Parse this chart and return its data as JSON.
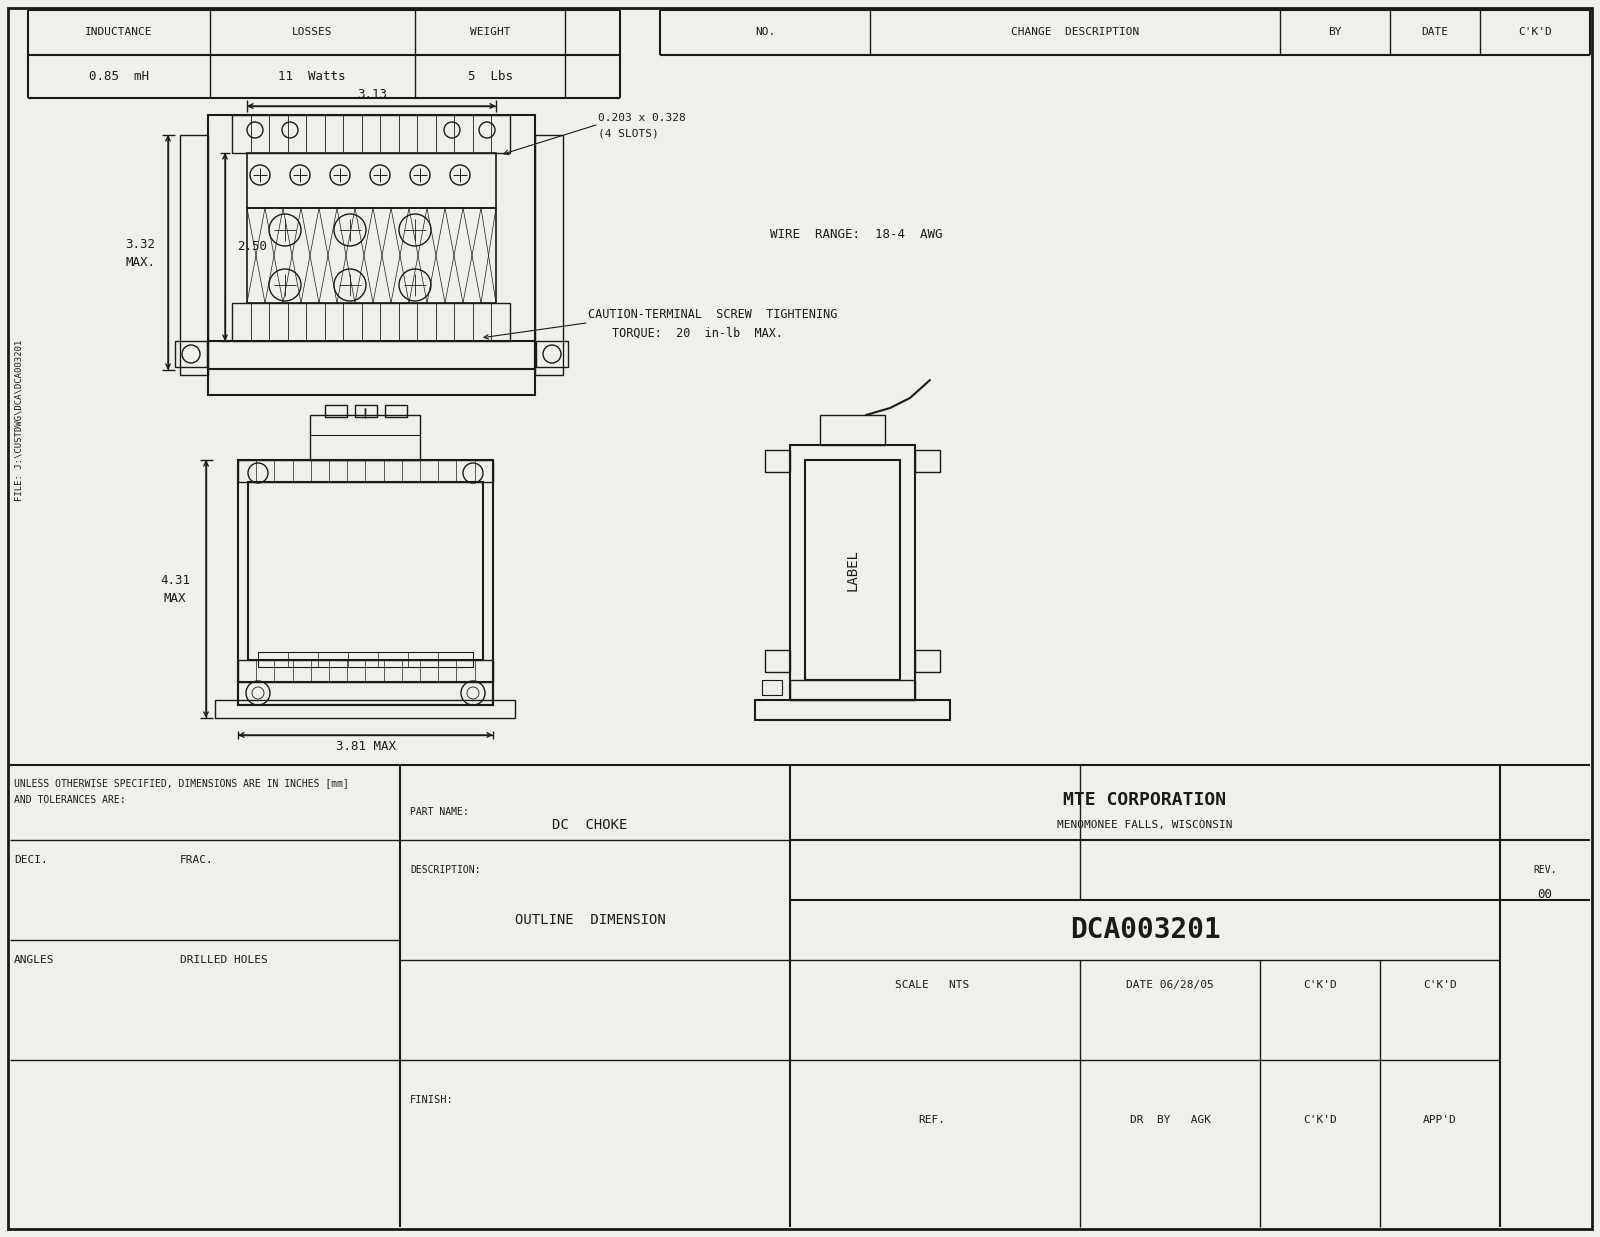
{
  "bg_color": "#f0f0ea",
  "line_color": "#1a1a1a",
  "title_block": {
    "company": "MTE CORPORATION",
    "location": "MENOMONEE FALLS, WISCONSIN",
    "part_name_label": "PART NAME:",
    "part_name": "DC  CHOKE",
    "description_label": "DESCRIPTION:",
    "description": "OUTLINE  DIMENSION",
    "drawing_number": "DCA003201",
    "scale": "SCALE   NTS",
    "date": "DATE 06/28/05",
    "ckd": "C'K'D",
    "ref": "REF.",
    "dr_by": "DR  BY   AGK",
    "appd": "APP'D",
    "rev_label": "REV.",
    "rev": "00"
  },
  "notes_block": {
    "line1": "UNLESS OTHERWISE SPECIFIED, DIMENSIONS ARE IN INCHES [mm]",
    "line2": "AND TOLERANCES ARE:",
    "deci_label": "DECI.",
    "frac_label": "FRAC.",
    "angles_label": "ANGLES",
    "drilled_label": "DRILLED HOLES",
    "finish_label": "FINISH:"
  },
  "header": {
    "inductance_label": "INDUCTANCE",
    "inductance_val": "0.85  mH",
    "losses_label": "LOSSES",
    "losses_val": "11  Watts",
    "weight_label": "WEIGHT",
    "weight_val": "5  Lbs",
    "no_label": "NO.",
    "change_label": "CHANGE  DESCRIPTION",
    "by_label": "BY",
    "date_label": "DATE",
    "ckd_label": "C'K'D"
  },
  "annotations": {
    "dim_313": "3.13",
    "dim_slots_1": "0.203 x 0.328",
    "dim_slots_2": "(4 SLOTS)",
    "dim_332": "3.32",
    "dim_332b": "MAX.",
    "dim_250": "2.50",
    "wire_range": "WIRE  RANGE:  18-4  AWG",
    "caution1": "CAUTION-TERMINAL  SCREW  TIGHTENING",
    "caution2": "TORQUE:  20  in-lb  MAX.",
    "dim_431": "4.31",
    "dim_431b": "MAX",
    "dim_381": "3.81 MAX",
    "label_text": "LABEL",
    "file_text": "FILE: J:\\CUSTDWG\\DCA\\DCA003201"
  }
}
